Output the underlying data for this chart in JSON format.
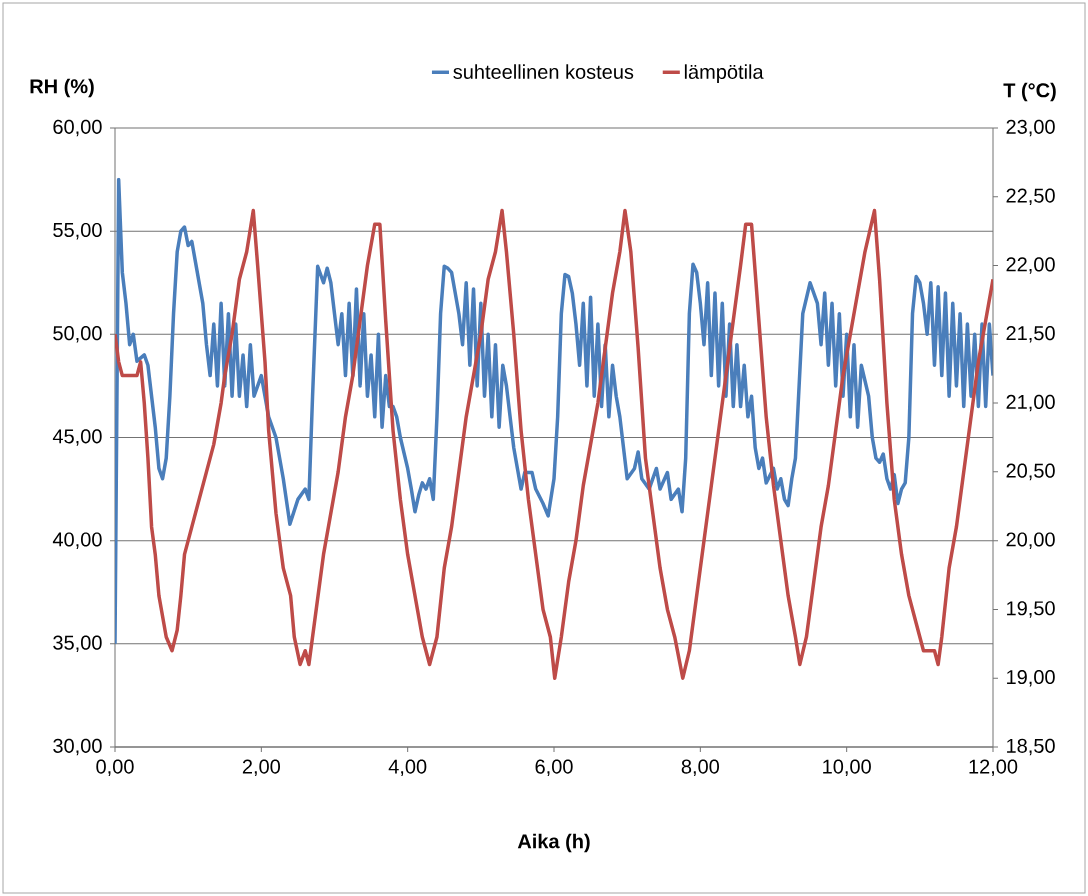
{
  "chart_data": {
    "type": "line",
    "xlabel": "Aika (h)",
    "ylabel": "RH (%)",
    "y2label": "T (°C)",
    "xlim": [
      0,
      12
    ],
    "xticks": [
      {
        "value": 0,
        "label": "0,00"
      },
      {
        "value": 2,
        "label": "2,00"
      },
      {
        "value": 4,
        "label": "4,00"
      },
      {
        "value": 6,
        "label": "6,00"
      },
      {
        "value": 8,
        "label": "8,00"
      },
      {
        "value": 10,
        "label": "10,00"
      },
      {
        "value": 12,
        "label": "12,00"
      }
    ],
    "ylim": [
      30,
      60
    ],
    "yticks": [
      {
        "value": 30,
        "label": "30,00"
      },
      {
        "value": 35,
        "label": "35,00"
      },
      {
        "value": 40,
        "label": "40,00"
      },
      {
        "value": 45,
        "label": "45,00"
      },
      {
        "value": 50,
        "label": "50,00"
      },
      {
        "value": 55,
        "label": "55,00"
      },
      {
        "value": 60,
        "label": "60,00"
      }
    ],
    "y2lim": [
      18.5,
      23
    ],
    "y2ticks": [
      {
        "value": 18.5,
        "label": "18,50"
      },
      {
        "value": 19,
        "label": "19,00"
      },
      {
        "value": 19.5,
        "label": "19,50"
      },
      {
        "value": 20,
        "label": "20,00"
      },
      {
        "value": 20.5,
        "label": "20,50"
      },
      {
        "value": 21,
        "label": "21,00"
      },
      {
        "value": 21.5,
        "label": "21,50"
      },
      {
        "value": 22,
        "label": "22,00"
      },
      {
        "value": 22.5,
        "label": "22,50"
      },
      {
        "value": 23,
        "label": "23,00"
      }
    ],
    "grid": "y",
    "legend": "top",
    "marker": "none",
    "line_style": "solid",
    "series": [
      {
        "name": "suhteellinen kosteus",
        "color": "#4a7ebb",
        "axis": "y",
        "x": [
          0,
          0.05,
          0.1,
          0.15,
          0.2,
          0.25,
          0.3,
          0.4,
          0.45,
          0.5,
          0.55,
          0.6,
          0.65,
          0.7,
          0.75,
          0.8,
          0.85,
          0.9,
          0.95,
          1.0,
          1.05,
          1.1,
          1.2,
          1.25,
          1.3,
          1.35,
          1.4,
          1.45,
          1.5,
          1.55,
          1.6,
          1.65,
          1.7,
          1.75,
          1.8,
          1.85,
          1.9,
          2.0,
          2.1,
          2.2,
          2.3,
          2.39,
          2.5,
          2.6,
          2.65,
          2.7,
          2.77,
          2.85,
          2.9,
          2.95,
          3.0,
          3.05,
          3.1,
          3.15,
          3.2,
          3.25,
          3.3,
          3.35,
          3.4,
          3.45,
          3.5,
          3.55,
          3.6,
          3.65,
          3.7,
          3.75,
          3.8,
          3.85,
          3.9,
          4.0,
          4.05,
          4.1,
          4.15,
          4.2,
          4.25,
          4.3,
          4.35,
          4.4,
          4.45,
          4.5,
          4.55,
          4.6,
          4.65,
          4.7,
          4.75,
          4.8,
          4.85,
          4.9,
          4.95,
          5.0,
          5.05,
          5.1,
          5.15,
          5.2,
          5.25,
          5.3,
          5.35,
          5.4,
          5.45,
          5.5,
          5.55,
          5.6,
          5.7,
          5.75,
          5.85,
          5.92,
          6.0,
          6.05,
          6.1,
          6.15,
          6.2,
          6.25,
          6.3,
          6.35,
          6.4,
          6.45,
          6.5,
          6.55,
          6.6,
          6.65,
          6.7,
          6.75,
          6.8,
          6.85,
          6.9,
          6.95,
          7.0,
          7.1,
          7.15,
          7.2,
          7.3,
          7.4,
          7.45,
          7.55,
          7.6,
          7.7,
          7.75,
          7.8,
          7.85,
          7.9,
          7.95,
          8.0,
          8.05,
          8.1,
          8.15,
          8.2,
          8.25,
          8.3,
          8.35,
          8.4,
          8.45,
          8.5,
          8.55,
          8.6,
          8.65,
          8.7,
          8.75,
          8.8,
          8.85,
          8.9,
          9.0,
          9.05,
          9.1,
          9.15,
          9.2,
          9.25,
          9.3,
          9.4,
          9.5,
          9.55,
          9.6,
          9.65,
          9.7,
          9.75,
          9.8,
          9.85,
          9.9,
          9.95,
          10.0,
          10.05,
          10.1,
          10.15,
          10.2,
          10.3,
          10.35,
          10.4,
          10.45,
          10.5,
          10.55,
          10.6,
          10.65,
          10.7,
          10.75,
          10.8,
          10.85,
          10.9,
          10.95,
          11.0,
          11.05,
          11.1,
          11.15,
          11.2,
          11.25,
          11.3,
          11.35,
          11.4,
          11.45,
          11.5,
          11.55,
          11.6,
          11.65,
          11.7,
          11.75,
          11.8,
          11.85,
          11.9,
          11.95,
          12.0
        ],
        "values": [
          35,
          57.5,
          53,
          51.5,
          49.5,
          50,
          48.7,
          49,
          48.5,
          47,
          45.5,
          43.5,
          43,
          44,
          47,
          51,
          54,
          55,
          55.2,
          54.3,
          54.5,
          53.5,
          51.5,
          49.5,
          48,
          50.5,
          47.5,
          51.5,
          47.5,
          51,
          47,
          50.5,
          47,
          49,
          46.5,
          49.5,
          47,
          48,
          46,
          45,
          43,
          40.8,
          42,
          42.5,
          42,
          47,
          53.3,
          52.5,
          53.2,
          52.5,
          51,
          49.5,
          51,
          48,
          51.5,
          48,
          52.2,
          47.5,
          51,
          47,
          49,
          46,
          50,
          45.5,
          48,
          46.5,
          46.5,
          46,
          45,
          43.5,
          42.5,
          41.4,
          42.2,
          42.8,
          42.5,
          43,
          42,
          46,
          51,
          53.3,
          53.2,
          53,
          52,
          51,
          49.5,
          52.5,
          48.5,
          52.2,
          47.5,
          51.5,
          47,
          50,
          46,
          49.5,
          45.5,
          48.5,
          47.5,
          46,
          44.5,
          43.5,
          42.5,
          43.3,
          43.3,
          42.5,
          41.8,
          41.2,
          43,
          46,
          51,
          52.9,
          52.8,
          52,
          50.5,
          48.5,
          51.5,
          47.5,
          51.8,
          47,
          50.5,
          46.5,
          49.5,
          46,
          48.5,
          47,
          46,
          44.5,
          43,
          43.5,
          44.3,
          43,
          42.5,
          43.5,
          42.5,
          43.3,
          42,
          42.5,
          41.4,
          44,
          51,
          53.4,
          53,
          51.5,
          49.5,
          52.5,
          48,
          52,
          47.5,
          51.5,
          47,
          50.5,
          46.5,
          49.5,
          46.5,
          48.5,
          46,
          47,
          44.5,
          43.5,
          44,
          42.8,
          43.5,
          42.5,
          43,
          42,
          41.7,
          43,
          44,
          51,
          52.5,
          52,
          51.5,
          49.5,
          52,
          48.5,
          51.5,
          47.5,
          51,
          47,
          50,
          46,
          49.5,
          45.5,
          48.5,
          47,
          45,
          44,
          43.8,
          44.2,
          43,
          42.5,
          43.2,
          41.8,
          42.5,
          42.8,
          45,
          51,
          52.8,
          52.5,
          51.5,
          50,
          52.5,
          48.5,
          52.3,
          48,
          52,
          47,
          51.5,
          47.5,
          51,
          46.5,
          50.5,
          47,
          50,
          46.5,
          50.5,
          46.5,
          50.5,
          48
        ]
      },
      {
        "name": "lämpötila",
        "color": "#be4b48",
        "axis": "y2",
        "x": [
          0,
          0.05,
          0.1,
          0.2,
          0.3,
          0.35,
          0.4,
          0.45,
          0.5,
          0.55,
          0.6,
          0.65,
          0.7,
          0.78,
          0.85,
          0.9,
          0.95,
          1.05,
          1.15,
          1.25,
          1.35,
          1.45,
          1.5,
          1.6,
          1.7,
          1.8,
          1.89,
          1.95,
          2.05,
          2.1,
          2.2,
          2.3,
          2.4,
          2.45,
          2.53,
          2.6,
          2.65,
          2.75,
          2.85,
          2.95,
          3.05,
          3.15,
          3.25,
          3.35,
          3.45,
          3.55,
          3.62,
          3.7,
          3.8,
          3.9,
          4.0,
          4.1,
          4.2,
          4.3,
          4.4,
          4.5,
          4.6,
          4.7,
          4.8,
          4.9,
          5.0,
          5.1,
          5.2,
          5.29,
          5.35,
          5.45,
          5.55,
          5.65,
          5.75,
          5.85,
          5.95,
          6.01,
          6.1,
          6.2,
          6.3,
          6.4,
          6.5,
          6.6,
          6.7,
          6.8,
          6.9,
          6.97,
          7.05,
          7.15,
          7.25,
          7.35,
          7.45,
          7.55,
          7.65,
          7.76,
          7.85,
          7.95,
          8.05,
          8.15,
          8.25,
          8.35,
          8.45,
          8.55,
          8.62,
          8.7,
          8.8,
          8.9,
          9.0,
          9.1,
          9.2,
          9.3,
          9.36,
          9.45,
          9.55,
          9.65,
          9.75,
          9.85,
          9.95,
          10.05,
          10.15,
          10.25,
          10.38,
          10.45,
          10.55,
          10.65,
          10.75,
          10.85,
          10.95,
          11.05,
          11.2,
          11.25,
          11.3,
          11.4,
          11.5,
          11.6,
          11.7,
          11.8,
          11.9,
          12.0
        ],
        "values": [
          21.5,
          21.3,
          21.2,
          21.2,
          21.2,
          21.3,
          21.0,
          20.6,
          20.1,
          19.9,
          19.6,
          19.45,
          19.3,
          19.2,
          19.35,
          19.6,
          19.9,
          20.1,
          20.3,
          20.5,
          20.7,
          21.0,
          21.2,
          21.5,
          21.9,
          22.1,
          22.4,
          22.0,
          21.3,
          20.8,
          20.2,
          19.8,
          19.6,
          19.3,
          19.1,
          19.2,
          19.1,
          19.5,
          19.9,
          20.2,
          20.5,
          20.9,
          21.2,
          21.6,
          22.0,
          22.3,
          22.3,
          21.6,
          20.8,
          20.3,
          19.9,
          19.6,
          19.3,
          19.1,
          19.3,
          19.8,
          20.1,
          20.5,
          20.9,
          21.2,
          21.5,
          21.9,
          22.1,
          22.4,
          22.1,
          21.5,
          20.8,
          20.3,
          19.9,
          19.5,
          19.3,
          19.0,
          19.3,
          19.7,
          20.0,
          20.4,
          20.7,
          21.0,
          21.4,
          21.8,
          22.1,
          22.4,
          22.1,
          21.4,
          20.6,
          20.2,
          19.8,
          19.5,
          19.3,
          19.0,
          19.2,
          19.6,
          20.0,
          20.4,
          20.8,
          21.2,
          21.6,
          22.0,
          22.3,
          22.3,
          21.6,
          20.9,
          20.4,
          20.0,
          19.6,
          19.3,
          19.1,
          19.3,
          19.7,
          20.1,
          20.4,
          20.8,
          21.2,
          21.5,
          21.8,
          22.1,
          22.4,
          21.9,
          21.0,
          20.3,
          19.9,
          19.6,
          19.4,
          19.2,
          19.2,
          19.1,
          19.3,
          19.8,
          20.1,
          20.5,
          20.9,
          21.3,
          21.6,
          21.9
        ]
      }
    ]
  }
}
